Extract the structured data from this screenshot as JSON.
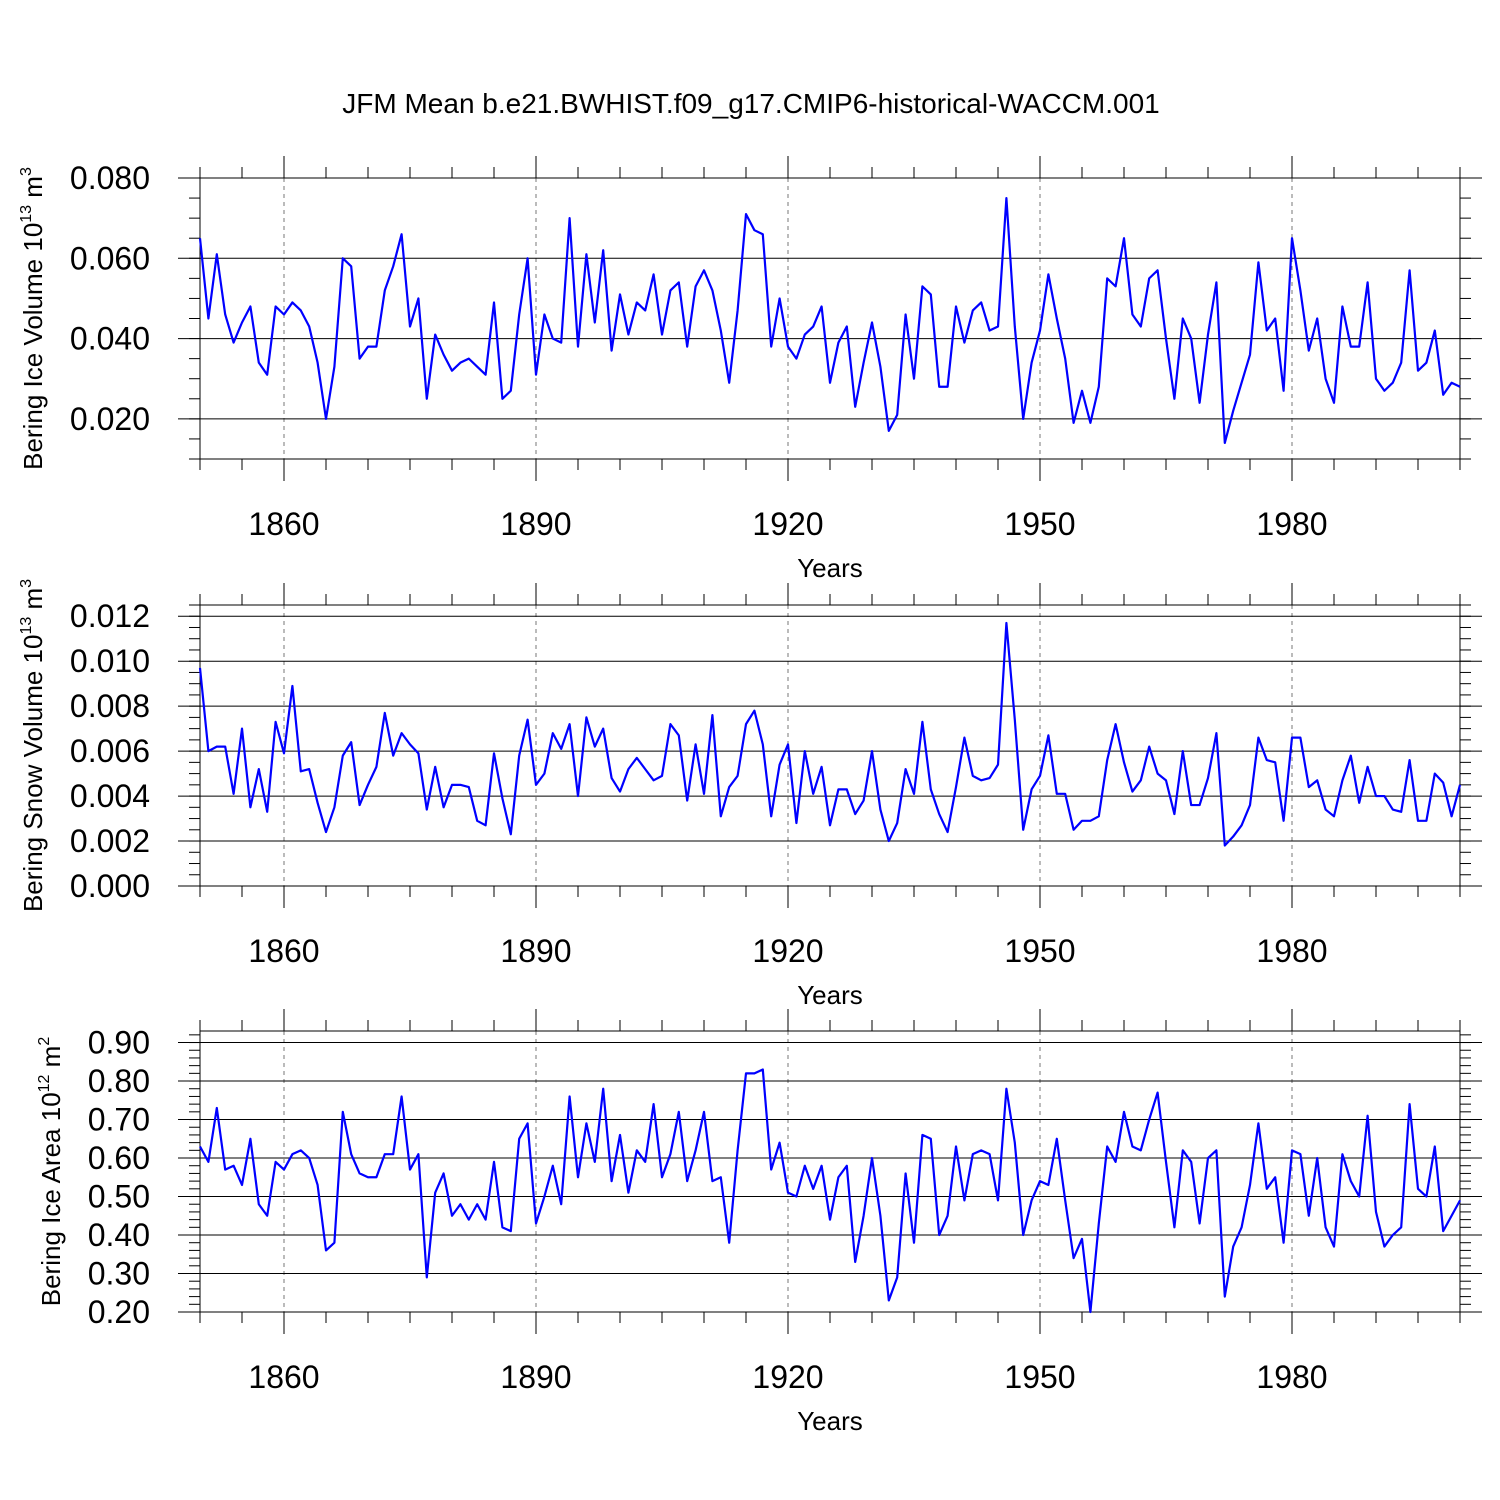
{
  "chart_data": [
    {
      "type": "line",
      "title": "JFM Mean b.e21.BWHIST.f09_g17.CMIP6-historical-WACCM.001",
      "ylabel_main": "Bering Ice Volume 10",
      "ylabel_exp": "13",
      "ylabel_unit": " m",
      "ylabel_unit_exp": "3",
      "xlabel": "Years",
      "xlim": [
        1850,
        2000
      ],
      "ylim": [
        0.01,
        0.08
      ],
      "yticks": [
        0.02,
        0.04,
        0.06,
        0.08
      ],
      "ytick_labels": [
        "0.020",
        "0.040",
        "0.060",
        "0.080"
      ],
      "yminor_step": 0.005,
      "xticks": [
        1860,
        1890,
        1920,
        1950,
        1980
      ],
      "xtick_labels": [
        "1860",
        "1890",
        "1920",
        "1950",
        "1980"
      ],
      "x_start": 1850,
      "series": [
        {
          "name": "Bering Ice Volume",
          "values": [
            0.065,
            0.045,
            0.061,
            0.046,
            0.039,
            0.044,
            0.048,
            0.034,
            0.031,
            0.048,
            0.046,
            0.049,
            0.047,
            0.043,
            0.034,
            0.02,
            0.033,
            0.06,
            0.058,
            0.035,
            0.038,
            0.038,
            0.052,
            0.058,
            0.066,
            0.043,
            0.05,
            0.025,
            0.041,
            0.036,
            0.032,
            0.034,
            0.035,
            0.033,
            0.031,
            0.049,
            0.025,
            0.027,
            0.046,
            0.06,
            0.031,
            0.046,
            0.04,
            0.039,
            0.07,
            0.038,
            0.061,
            0.044,
            0.062,
            0.037,
            0.051,
            0.041,
            0.049,
            0.047,
            0.056,
            0.041,
            0.052,
            0.054,
            0.038,
            0.053,
            0.057,
            0.052,
            0.042,
            0.029,
            0.047,
            0.071,
            0.067,
            0.066,
            0.038,
            0.05,
            0.038,
            0.035,
            0.041,
            0.043,
            0.048,
            0.029,
            0.039,
            0.043,
            0.023,
            0.034,
            0.044,
            0.033,
            0.017,
            0.021,
            0.046,
            0.03,
            0.053,
            0.051,
            0.028,
            0.028,
            0.048,
            0.039,
            0.047,
            0.049,
            0.042,
            0.043,
            0.075,
            0.043,
            0.02,
            0.034,
            0.042,
            0.056,
            0.045,
            0.035,
            0.019,
            0.027,
            0.019,
            0.028,
            0.055,
            0.053,
            0.065,
            0.046,
            0.043,
            0.055,
            0.057,
            0.04,
            0.025,
            0.045,
            0.04,
            0.024,
            0.041,
            0.054,
            0.014,
            0.022,
            0.029,
            0.036,
            0.059,
            0.042,
            0.045,
            0.027,
            0.065,
            0.052,
            0.037,
            0.045,
            0.03,
            0.024,
            0.048,
            0.038,
            0.038,
            0.054,
            0.03,
            0.027,
            0.029,
            0.034,
            0.057,
            0.032,
            0.034,
            0.042,
            0.026,
            0.029,
            0.028
          ]
        }
      ]
    },
    {
      "type": "line",
      "title": "",
      "ylabel_main": "Bering Snow Volume 10",
      "ylabel_exp": "13",
      "ylabel_unit": " m",
      "ylabel_unit_exp": "3",
      "xlabel": "Years",
      "xlim": [
        1850,
        2000
      ],
      "ylim": [
        0.0,
        0.0125
      ],
      "yticks": [
        0.0,
        0.002,
        0.004,
        0.006,
        0.008,
        0.01,
        0.012
      ],
      "ytick_labels": [
        "0.000",
        "0.002",
        "0.004",
        "0.006",
        "0.008",
        "0.010",
        "0.012"
      ],
      "yminor_step": 0.0005,
      "xticks": [
        1860,
        1890,
        1920,
        1950,
        1980
      ],
      "xtick_labels": [
        "1860",
        "1890",
        "1920",
        "1950",
        "1980"
      ],
      "x_start": 1850,
      "series": [
        {
          "name": "Bering Snow Volume",
          "values": [
            0.0097,
            0.006,
            0.0062,
            0.0062,
            0.0041,
            0.007,
            0.0035,
            0.0052,
            0.0033,
            0.0073,
            0.0059,
            0.0089,
            0.0051,
            0.0052,
            0.0037,
            0.0024,
            0.0035,
            0.0058,
            0.0064,
            0.0036,
            0.0045,
            0.0053,
            0.0077,
            0.0058,
            0.0068,
            0.0063,
            0.0059,
            0.0034,
            0.0053,
            0.0035,
            0.0045,
            0.0045,
            0.0044,
            0.0029,
            0.0027,
            0.0059,
            0.0039,
            0.0023,
            0.0058,
            0.0074,
            0.0045,
            0.005,
            0.0068,
            0.0061,
            0.0072,
            0.004,
            0.0075,
            0.0062,
            0.007,
            0.0048,
            0.0042,
            0.0052,
            0.0057,
            0.0052,
            0.0047,
            0.0049,
            0.0072,
            0.0067,
            0.0038,
            0.0063,
            0.0041,
            0.0076,
            0.0031,
            0.0044,
            0.0049,
            0.0072,
            0.0078,
            0.0063,
            0.0031,
            0.0054,
            0.0063,
            0.0028,
            0.006,
            0.0041,
            0.0053,
            0.0027,
            0.0043,
            0.0043,
            0.0032,
            0.0038,
            0.006,
            0.0034,
            0.002,
            0.0028,
            0.0052,
            0.0041,
            0.0073,
            0.0043,
            0.0032,
            0.0024,
            0.0044,
            0.0066,
            0.0049,
            0.0047,
            0.0048,
            0.0054,
            0.0117,
            0.0074,
            0.0025,
            0.0043,
            0.0049,
            0.0067,
            0.0041,
            0.0041,
            0.0025,
            0.0029,
            0.0029,
            0.0031,
            0.0056,
            0.0072,
            0.0055,
            0.0042,
            0.0047,
            0.0062,
            0.005,
            0.0047,
            0.0032,
            0.006,
            0.0036,
            0.0036,
            0.0048,
            0.0068,
            0.0018,
            0.0022,
            0.0027,
            0.0036,
            0.0066,
            0.0056,
            0.0055,
            0.0029,
            0.0066,
            0.0066,
            0.0044,
            0.0047,
            0.0034,
            0.0031,
            0.0047,
            0.0058,
            0.0037,
            0.0053,
            0.004,
            0.004,
            0.0034,
            0.0033,
            0.0056,
            0.0029,
            0.0029,
            0.005,
            0.0046,
            0.0031,
            0.0045
          ]
        }
      ]
    },
    {
      "type": "line",
      "title": "",
      "ylabel_main": "Bering Ice Area 10",
      "ylabel_exp": "12",
      "ylabel_unit": " m",
      "ylabel_unit_exp": "2",
      "xlabel": "Years",
      "xlim": [
        1850,
        2000
      ],
      "ylim": [
        0.2,
        0.93
      ],
      "yticks": [
        0.2,
        0.3,
        0.4,
        0.5,
        0.6,
        0.7,
        0.8,
        0.9
      ],
      "ytick_labels": [
        "0.20",
        "0.30",
        "0.40",
        "0.50",
        "0.60",
        "0.70",
        "0.80",
        "0.90"
      ],
      "yminor_step": 0.02,
      "xticks": [
        1860,
        1890,
        1920,
        1950,
        1980
      ],
      "xtick_labels": [
        "1860",
        "1890",
        "1920",
        "1950",
        "1980"
      ],
      "x_start": 1850,
      "series": [
        {
          "name": "Bering Ice Area",
          "values": [
            0.63,
            0.59,
            0.73,
            0.57,
            0.58,
            0.53,
            0.65,
            0.48,
            0.45,
            0.59,
            0.57,
            0.61,
            0.62,
            0.6,
            0.53,
            0.36,
            0.38,
            0.72,
            0.61,
            0.56,
            0.55,
            0.55,
            0.61,
            0.61,
            0.76,
            0.57,
            0.61,
            0.29,
            0.51,
            0.56,
            0.45,
            0.48,
            0.44,
            0.48,
            0.44,
            0.59,
            0.42,
            0.41,
            0.65,
            0.69,
            0.43,
            0.5,
            0.58,
            0.48,
            0.76,
            0.55,
            0.69,
            0.59,
            0.78,
            0.54,
            0.66,
            0.51,
            0.62,
            0.59,
            0.74,
            0.55,
            0.61,
            0.72,
            0.54,
            0.62,
            0.72,
            0.54,
            0.55,
            0.38,
            0.62,
            0.82,
            0.82,
            0.83,
            0.57,
            0.64,
            0.51,
            0.5,
            0.58,
            0.52,
            0.58,
            0.44,
            0.55,
            0.58,
            0.33,
            0.45,
            0.6,
            0.45,
            0.23,
            0.29,
            0.56,
            0.38,
            0.66,
            0.65,
            0.4,
            0.45,
            0.63,
            0.49,
            0.61,
            0.62,
            0.61,
            0.49,
            0.78,
            0.64,
            0.4,
            0.49,
            0.54,
            0.53,
            0.65,
            0.49,
            0.34,
            0.39,
            0.2,
            0.43,
            0.63,
            0.59,
            0.72,
            0.63,
            0.62,
            0.7,
            0.77,
            0.59,
            0.42,
            0.62,
            0.59,
            0.43,
            0.6,
            0.62,
            0.24,
            0.37,
            0.42,
            0.53,
            0.69,
            0.52,
            0.55,
            0.38,
            0.62,
            0.61,
            0.45,
            0.6,
            0.42,
            0.37,
            0.61,
            0.54,
            0.5,
            0.71,
            0.46,
            0.37,
            0.4,
            0.42,
            0.74,
            0.52,
            0.5,
            0.63,
            0.41,
            0.45,
            0.49
          ]
        }
      ]
    }
  ]
}
